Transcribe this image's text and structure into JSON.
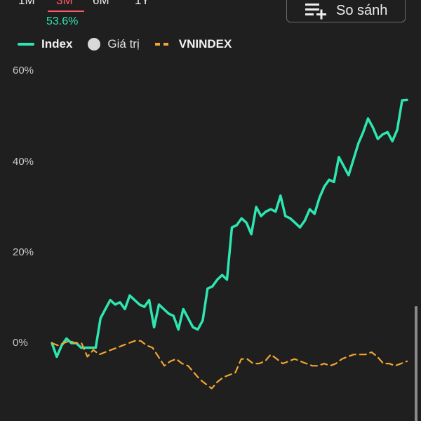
{
  "tabs": [
    {
      "label": "1M",
      "active": false
    },
    {
      "label": "3M",
      "active": true
    },
    {
      "label": "6M",
      "active": false
    },
    {
      "label": "1Y",
      "active": false
    }
  ],
  "active_tab_value": "53.6%",
  "compare_button": {
    "label": "So sánh",
    "icon": "list-add-icon"
  },
  "legend": {
    "index_label": "Index",
    "value_label": "Giá trị",
    "vnindex_label": "VNINDEX"
  },
  "colors": {
    "index": "#2ee6b0",
    "vnindex": "#f2a531",
    "active_tab": "#ff5b66",
    "background": "#1f1f1f"
  },
  "chart_data": {
    "type": "line",
    "ylim": [
      -10,
      60
    ],
    "yticks": [
      "60%",
      "40%",
      "20%",
      "0%"
    ],
    "ytick_values": [
      60,
      40,
      20,
      0
    ],
    "grid": false,
    "legend_position": "top-left",
    "series": [
      {
        "name": "Index",
        "style": "solid",
        "values": [
          0,
          -3,
          -0.5,
          1,
          0,
          0,
          -1,
          -1,
          -1,
          -1,
          5.5,
          7.5,
          9.5,
          8.5,
          9,
          7.5,
          10.5,
          9.5,
          8.5,
          8,
          9.5,
          3.5,
          8.5,
          7.5,
          6.5,
          6,
          3,
          7.5,
          5.5,
          3.5,
          3,
          5,
          12,
          12.5,
          14,
          15,
          14,
          25.5,
          26,
          27.5,
          26.5,
          24,
          30,
          28,
          29,
          29.5,
          29,
          32.5,
          28,
          27.5,
          26.5,
          25.5,
          27,
          29.5,
          28.5,
          32,
          34.5,
          36,
          35.5,
          41,
          39,
          37,
          40.5,
          44,
          46.5,
          49.5,
          47.5,
          45,
          46,
          46.5,
          44.5,
          47,
          53.5,
          53.6
        ]
      },
      {
        "name": "VNINDEX",
        "style": "dashed",
        "values": [
          0,
          -0.5,
          0,
          0.5,
          0,
          0,
          -3,
          -1.5,
          -2.5,
          -2,
          -1.5,
          -1,
          -0.5,
          0,
          0.5,
          0.5,
          -0.5,
          -1,
          -3,
          -5,
          -4,
          -3.5,
          -4.5,
          -5,
          -6.5,
          -8,
          -9,
          -10,
          -8.5,
          -7.5,
          -7,
          -6.5,
          -3.5,
          -3.5,
          -4.5,
          -4.5,
          -4,
          -2.5,
          -3.5,
          -4.5,
          -4,
          -3.5,
          -4,
          -4.5,
          -5,
          -5,
          -4.5,
          -5,
          -4.5,
          -3.5,
          -3,
          -2.5,
          -2.5,
          -2.5,
          -2,
          -3,
          -4.5,
          -4.5,
          -5,
          -4.5,
          -4
        ]
      }
    ]
  }
}
